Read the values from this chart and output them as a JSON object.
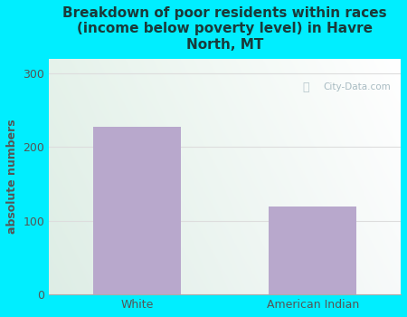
{
  "categories": [
    "White",
    "American Indian"
  ],
  "values": [
    228,
    120
  ],
  "bar_color": "#b8a8cc",
  "title": "Breakdown of poor residents within races\n(income below poverty level) in Havre\nNorth, MT",
  "ylabel": "absolute numbers",
  "ylim": [
    0,
    320
  ],
  "yticks": [
    0,
    100,
    200,
    300
  ],
  "bg_outer": "#00eeff",
  "bg_plot_topleft": "#ddeedd",
  "bg_plot_topright": "#eef8f8",
  "bg_plot_bottomleft": "#d8eedd",
  "bg_plot_bottomright": "#eaf4f0",
  "grid_color": "#dddddd",
  "watermark": "City-Data.com",
  "title_fontsize": 11,
  "ylabel_fontsize": 9,
  "tick_fontsize": 9,
  "title_color": "#1a3a3a",
  "label_color": "#555555"
}
